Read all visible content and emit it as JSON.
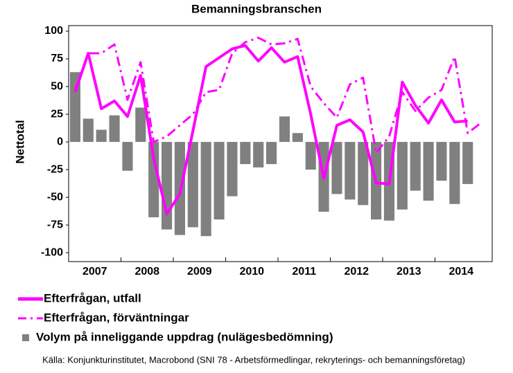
{
  "chart_data": {
    "type": "bar-line",
    "title": "Bemanningsbranschen",
    "y_label": "Nettotal",
    "years": [
      "2007",
      "2008",
      "2009",
      "2010",
      "2011",
      "2012",
      "2013",
      "2014"
    ],
    "series": [
      {
        "name": "Efterfrågan, utfall",
        "type": "line",
        "color": "#ff00ff",
        "style": "solid",
        "values": [
          45,
          80,
          30,
          37,
          23,
          60,
          -15,
          -65,
          -47,
          10,
          68,
          76,
          84,
          87,
          73,
          85,
          72,
          77,
          25,
          -33,
          15,
          20,
          9,
          -37,
          -38,
          54,
          33,
          17,
          38,
          18,
          19,
          null
        ]
      },
      {
        "name": "Efterfrågan, förväntningar",
        "type": "line",
        "color": "#ff00ff",
        "style": "dashdot",
        "values": [
          47,
          80,
          80,
          88,
          38,
          72,
          0,
          5,
          15,
          25,
          45,
          47,
          80,
          90,
          94,
          88,
          89,
          93,
          50,
          35,
          22,
          52,
          58,
          -10,
          5,
          45,
          28,
          40,
          47,
          77,
          8,
          17
        ]
      },
      {
        "name": "Volym på inneliggande uppdrag (nulägesbedömning)",
        "type": "bar",
        "color": "#808080",
        "values": [
          63,
          21,
          11,
          24,
          -26,
          31,
          -68,
          -79,
          -84,
          -77,
          -85,
          -70,
          -49,
          -20,
          -23,
          -20,
          23,
          8,
          -25,
          -63,
          -47,
          -52,
          -57,
          -70,
          -71,
          -61,
          -44,
          -53,
          -35,
          -56,
          -38,
          null
        ]
      }
    ],
    "ylim": [
      -108,
      105
    ],
    "yticks": [
      -100,
      -75,
      -50,
      -25,
      0,
      25,
      50,
      75,
      100
    ],
    "source": "Källa: Konjunkturinstitutet, Macrobond (SNI 78 - Arbetsförmedlingar, rekryterings- och bemanningsföretag)"
  }
}
